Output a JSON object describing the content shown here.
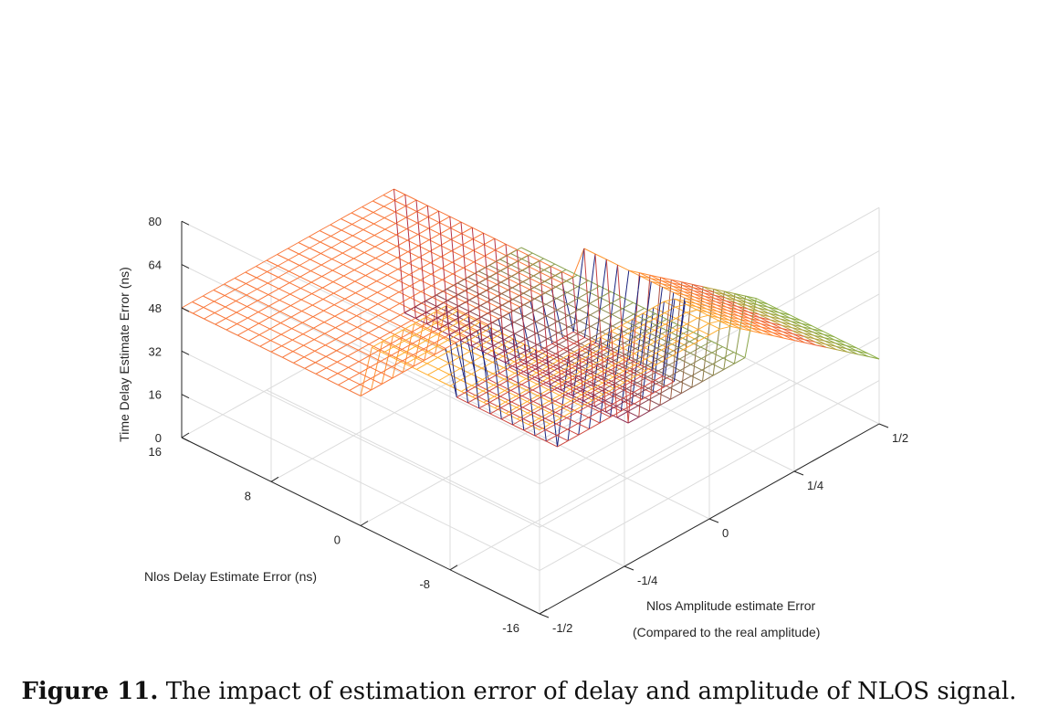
{
  "chart_data": {
    "type": "surface3d",
    "title": "",
    "xlabel": "Nlos Delay Estimate Error (ns)",
    "ylabel_line1": "Nlos Amplitude estimate Error",
    "ylabel_line2": "(Compared to the real amplitude)",
    "zlabel": "Time Delay Estimate Error (ns)",
    "x_ticks": [
      "16",
      "8",
      "0",
      "-8",
      "-16"
    ],
    "x_tick_values": [
      16,
      8,
      0,
      -8,
      -16
    ],
    "y_ticks": [
      "-1/2",
      "-1/4",
      "0",
      "1/4",
      "1/2"
    ],
    "y_tick_values": [
      -0.5,
      -0.25,
      0,
      0.25,
      0.5
    ],
    "z_ticks": [
      "0",
      "16",
      "32",
      "48",
      "64",
      "80"
    ],
    "z_tick_values": [
      0,
      16,
      32,
      48,
      64,
      80
    ],
    "xlim": [
      -16,
      16
    ],
    "ylim": [
      -0.5,
      0.5
    ],
    "zlim": [
      0,
      80
    ],
    "grid": true,
    "colormap": "hot",
    "mesh": {
      "x_points": 33,
      "y_points": 33,
      "regions": [
        {
          "name": "upper plateau",
          "x_range": [
            0,
            16
          ],
          "y_range": [
            -0.5,
            0.15
          ],
          "z": 48
        },
        {
          "name": "high plateau",
          "x_range": [
            -16,
            0
          ],
          "y_range": [
            -0.5,
            0.05
          ],
          "z": 68
        },
        {
          "name": "sloped region",
          "x_range": [
            -16,
            0
          ],
          "y_range": [
            0.05,
            0.5
          ],
          "z_start": 68,
          "z_end": 24
        },
        {
          "name": "low floor",
          "x_range": [
            -4,
            16
          ],
          "y_range": [
            0.15,
            0.5
          ],
          "z": 0
        },
        {
          "name": "deep trough",
          "x_range": [
            -10,
            -1
          ],
          "y_range": [
            -0.25,
            0.1
          ],
          "z": 32
        }
      ]
    }
  },
  "caption": {
    "label": "Figure 11.",
    "text": "The impact of estimation error of delay and amplitude of NLOS signal."
  },
  "colors": {
    "axis": "#262626",
    "grid": "#dcdcdc",
    "trough_edge": "#1a237e"
  }
}
